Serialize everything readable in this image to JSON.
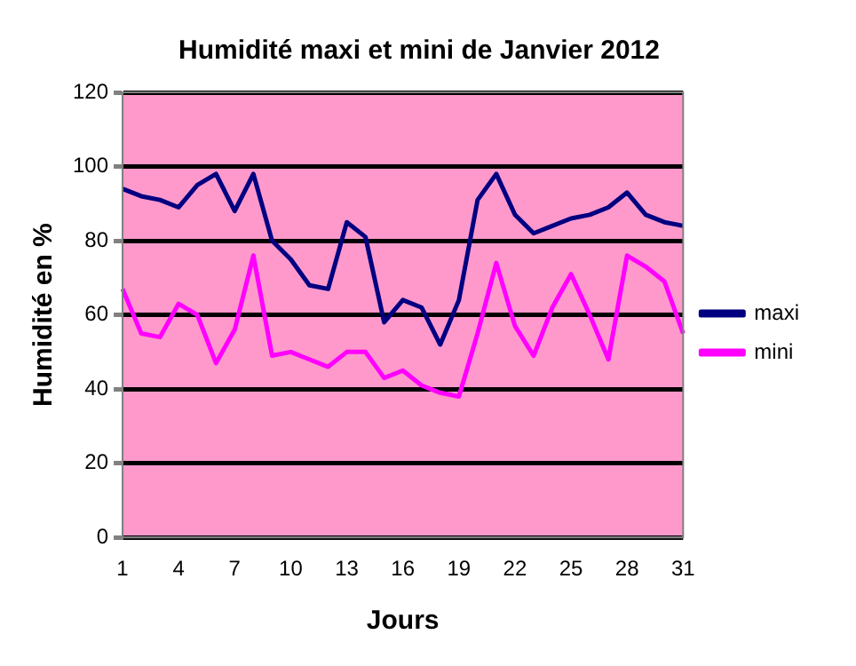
{
  "chart_data": {
    "type": "line",
    "title": "Humidité maxi et mini de Janvier 2012",
    "xlabel": "Jours",
    "ylabel": "Humidité en %",
    "categories": [
      "1",
      null,
      null,
      "4",
      null,
      null,
      "7",
      null,
      null,
      "10",
      null,
      null,
      "13",
      null,
      null,
      "16",
      null,
      null,
      "19",
      null,
      null,
      "22",
      null,
      null,
      "25",
      null,
      null,
      "28",
      null,
      null,
      "31"
    ],
    "series": [
      {
        "name": "maxi",
        "color": "#000080",
        "values": [
          94,
          92,
          91,
          89,
          95,
          98,
          88,
          98,
          80,
          75,
          68,
          67,
          85,
          81,
          58,
          64,
          62,
          52,
          64,
          91,
          98,
          87,
          82,
          84,
          86,
          87,
          89,
          93,
          87,
          85,
          84
        ]
      },
      {
        "name": "mini",
        "color": "#ff00ff",
        "values": [
          67,
          55,
          54,
          63,
          60,
          47,
          56,
          76,
          49,
          50,
          48,
          46,
          50,
          50,
          43,
          45,
          41,
          39,
          38,
          55,
          74,
          57,
          49,
          62,
          71,
          60,
          48,
          76,
          73,
          69,
          55
        ]
      }
    ],
    "ylim": [
      0,
      120
    ],
    "yticks": [
      0,
      20,
      40,
      60,
      80,
      100,
      120
    ],
    "grid": "y",
    "legend": "right",
    "marker": "none",
    "line_style": "solid"
  }
}
